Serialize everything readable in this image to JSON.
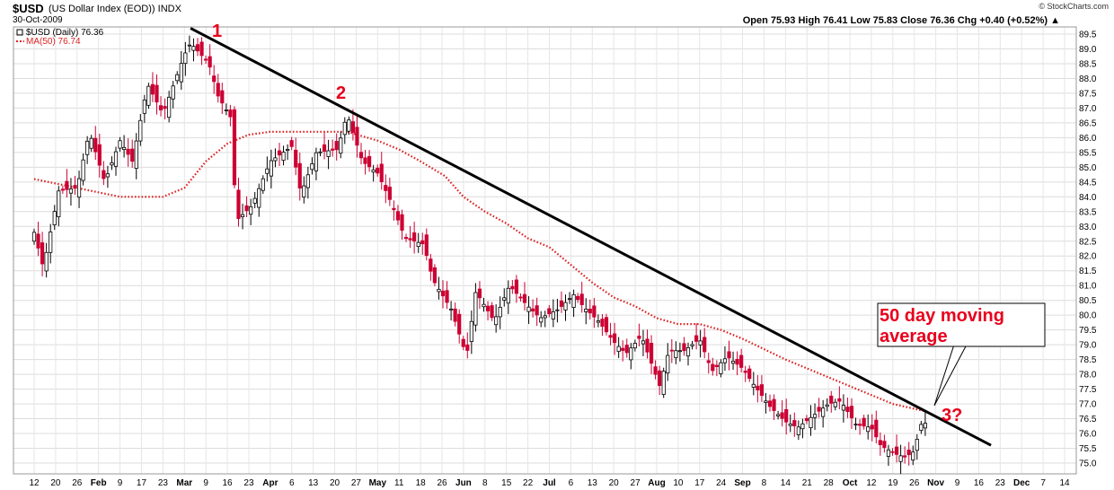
{
  "header": {
    "symbol": "$USD",
    "description": "(US Dollar Index (EOD)) INDX",
    "date": "30-Oct-2009",
    "watermark": "© StockCharts.com",
    "ohlc": "Open 75.93  High 76.41  Low 75.83  Close 76.36  Chg +0.40 (+0.52%) ▲"
  },
  "legend": {
    "price": "$USD (Daily) 76.36",
    "ma": "MA(50) 76.74"
  },
  "annotations": {
    "peak1": "1",
    "peak2": "2",
    "peak3": "3?",
    "callout_line1": "50 day moving",
    "callout_line2": "average"
  },
  "colors": {
    "up": "#000000",
    "down": "#cc0033",
    "ma": "#dd2222",
    "trend": "#000000",
    "label": "#e8001c"
  },
  "chart_data": {
    "type": "candlestick",
    "title": "$USD (US Dollar Index (EOD)) INDX",
    "ylim": [
      74.8,
      89.7
    ],
    "yticks": [
      75.0,
      75.5,
      76.0,
      76.5,
      77.0,
      77.5,
      78.0,
      78.5,
      79.0,
      79.5,
      80.0,
      80.5,
      81.0,
      81.5,
      82.0,
      82.5,
      83.0,
      83.5,
      84.0,
      84.5,
      85.0,
      85.5,
      86.0,
      86.5,
      87.0,
      87.5,
      88.0,
      88.5,
      89.0,
      89.5
    ],
    "xlabels": [
      "12",
      "20",
      "26",
      "Feb",
      "9",
      "17",
      "23",
      "Mar",
      "9",
      "16",
      "23",
      "Apr",
      "6",
      "13",
      "20",
      "27",
      "May",
      "11",
      "18",
      "26",
      "Jun",
      "8",
      "15",
      "22",
      "Jul",
      "6",
      "13",
      "20",
      "27",
      "Aug",
      "10",
      "17",
      "24",
      "Sep",
      "8",
      "14",
      "21",
      "28",
      "Oct",
      "12",
      "19",
      "26",
      "Nov",
      "9",
      "16",
      "23",
      "Dec",
      "7",
      "14"
    ],
    "bold_xlabels": [
      "Feb",
      "Mar",
      "Apr",
      "May",
      "Jun",
      "Jul",
      "Aug",
      "Sep",
      "Oct",
      "Nov",
      "Dec"
    ],
    "close_path": [
      {
        "date": "2009-01-12",
        "close": 82.8
      },
      {
        "date": "2009-01-15",
        "close": 81.6
      },
      {
        "date": "2009-01-20",
        "close": 84.2
      },
      {
        "date": "2009-01-26",
        "close": 84.3
      },
      {
        "date": "2009-01-30",
        "close": 86.2
      },
      {
        "date": "2009-02-04",
        "close": 84.5
      },
      {
        "date": "2009-02-09",
        "close": 85.9
      },
      {
        "date": "2009-02-13",
        "close": 85.2
      },
      {
        "date": "2009-02-18",
        "close": 87.8
      },
      {
        "date": "2009-02-23",
        "close": 86.8
      },
      {
        "date": "2009-03-02",
        "close": 88.8
      },
      {
        "date": "2009-03-04",
        "close": 89.2
      },
      {
        "date": "2009-03-10",
        "close": 88.5
      },
      {
        "date": "2009-03-13",
        "close": 87.4
      },
      {
        "date": "2009-03-17",
        "close": 86.7
      },
      {
        "date": "2009-03-19",
        "close": 83.2
      },
      {
        "date": "2009-03-24",
        "close": 83.7
      },
      {
        "date": "2009-03-30",
        "close": 85.2
      },
      {
        "date": "2009-04-06",
        "close": 85.7
      },
      {
        "date": "2009-04-09",
        "close": 84.1
      },
      {
        "date": "2009-04-14",
        "close": 85.5
      },
      {
        "date": "2009-04-21",
        "close": 85.6
      },
      {
        "date": "2009-04-24",
        "close": 86.8
      },
      {
        "date": "2009-04-29",
        "close": 85.2
      },
      {
        "date": "2009-05-04",
        "close": 84.8
      },
      {
        "date": "2009-05-08",
        "close": 83.9
      },
      {
        "date": "2009-05-13",
        "close": 82.6
      },
      {
        "date": "2009-05-19",
        "close": 82.4
      },
      {
        "date": "2009-05-22",
        "close": 81.2
      },
      {
        "date": "2009-05-28",
        "close": 80.2
      },
      {
        "date": "2009-06-02",
        "close": 78.6
      },
      {
        "date": "2009-06-05",
        "close": 80.8
      },
      {
        "date": "2009-06-11",
        "close": 79.8
      },
      {
        "date": "2009-06-16",
        "close": 81.0
      },
      {
        "date": "2009-06-22",
        "close": 80.3
      },
      {
        "date": "2009-06-26",
        "close": 79.9
      },
      {
        "date": "2009-07-02",
        "close": 80.2
      },
      {
        "date": "2009-07-07",
        "close": 80.7
      },
      {
        "date": "2009-07-10",
        "close": 80.3
      },
      {
        "date": "2009-07-15",
        "close": 79.8
      },
      {
        "date": "2009-07-20",
        "close": 79.1
      },
      {
        "date": "2009-07-24",
        "close": 78.7
      },
      {
        "date": "2009-07-29",
        "close": 79.3
      },
      {
        "date": "2009-08-04",
        "close": 77.6
      },
      {
        "date": "2009-08-07",
        "close": 78.8
      },
      {
        "date": "2009-08-12",
        "close": 78.8
      },
      {
        "date": "2009-08-17",
        "close": 79.2
      },
      {
        "date": "2009-08-21",
        "close": 78.1
      },
      {
        "date": "2009-08-26",
        "close": 78.6
      },
      {
        "date": "2009-08-31",
        "close": 78.2
      },
      {
        "date": "2009-09-04",
        "close": 77.6
      },
      {
        "date": "2009-09-09",
        "close": 76.9
      },
      {
        "date": "2009-09-14",
        "close": 76.4
      },
      {
        "date": "2009-09-18",
        "close": 76.2
      },
      {
        "date": "2009-09-23",
        "close": 76.6
      },
      {
        "date": "2009-09-28",
        "close": 77.0
      },
      {
        "date": "2009-10-02",
        "close": 77.1
      },
      {
        "date": "2009-10-07",
        "close": 76.3
      },
      {
        "date": "2009-10-12",
        "close": 76.2
      },
      {
        "date": "2009-10-15",
        "close": 75.6
      },
      {
        "date": "2009-10-20",
        "close": 75.3
      },
      {
        "date": "2009-10-23",
        "close": 75.2
      },
      {
        "date": "2009-10-26",
        "close": 75.4
      },
      {
        "date": "2009-10-28",
        "close": 76.3
      },
      {
        "date": "2009-10-30",
        "close": 76.36
      }
    ],
    "ma50": [
      {
        "date": "2009-01-12",
        "value": 84.6
      },
      {
        "date": "2009-01-26",
        "value": 84.3
      },
      {
        "date": "2009-02-09",
        "value": 84.0
      },
      {
        "date": "2009-02-23",
        "value": 84.0
      },
      {
        "date": "2009-03-02",
        "value": 84.3
      },
      {
        "date": "2009-03-09",
        "value": 85.2
      },
      {
        "date": "2009-03-16",
        "value": 85.8
      },
      {
        "date": "2009-03-23",
        "value": 86.1
      },
      {
        "date": "2009-03-30",
        "value": 86.2
      },
      {
        "date": "2009-04-13",
        "value": 86.2
      },
      {
        "date": "2009-04-24",
        "value": 86.2
      },
      {
        "date": "2009-05-04",
        "value": 85.9
      },
      {
        "date": "2009-05-11",
        "value": 85.6
      },
      {
        "date": "2009-05-18",
        "value": 85.2
      },
      {
        "date": "2009-05-26",
        "value": 84.7
      },
      {
        "date": "2009-06-01",
        "value": 84.0
      },
      {
        "date": "2009-06-08",
        "value": 83.5
      },
      {
        "date": "2009-06-15",
        "value": 83.1
      },
      {
        "date": "2009-06-22",
        "value": 82.6
      },
      {
        "date": "2009-06-29",
        "value": 82.3
      },
      {
        "date": "2009-07-06",
        "value": 81.7
      },
      {
        "date": "2009-07-13",
        "value": 81.1
      },
      {
        "date": "2009-07-20",
        "value": 80.6
      },
      {
        "date": "2009-07-27",
        "value": 80.3
      },
      {
        "date": "2009-08-03",
        "value": 79.9
      },
      {
        "date": "2009-08-10",
        "value": 79.7
      },
      {
        "date": "2009-08-17",
        "value": 79.7
      },
      {
        "date": "2009-08-24",
        "value": 79.5
      },
      {
        "date": "2009-08-31",
        "value": 79.2
      },
      {
        "date": "2009-09-08",
        "value": 78.8
      },
      {
        "date": "2009-09-14",
        "value": 78.5
      },
      {
        "date": "2009-09-21",
        "value": 78.2
      },
      {
        "date": "2009-09-28",
        "value": 77.9
      },
      {
        "date": "2009-10-05",
        "value": 77.6
      },
      {
        "date": "2009-10-12",
        "value": 77.3
      },
      {
        "date": "2009-10-19",
        "value": 77.0
      },
      {
        "date": "2009-10-30",
        "value": 76.74
      }
    ],
    "trendline": [
      {
        "date": "2009-03-04",
        "value": 89.7
      },
      {
        "date": "2009-11-20",
        "value": 75.6
      }
    ],
    "grid": true
  }
}
